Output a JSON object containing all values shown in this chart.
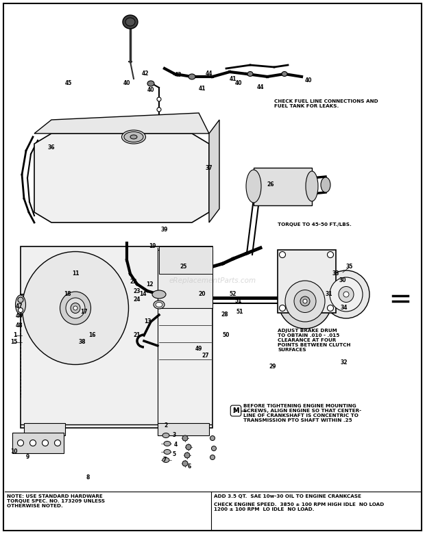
{
  "bg_color": "#ffffff",
  "fig_width": 6.2,
  "fig_height": 7.8,
  "dpi": 100,
  "watermark": "eReplacementParts.com",
  "note_left": "NOTE: USE STANDARD HARDWARE\nTORQUE SPEC. NO. 173209 UNLESS\nOTHERWISE NOTED.",
  "note_right1": "ADD 3.5 QT.  SAE 10w-30 OIL TO ENGINE CRANKCASE",
  "note_right2": "CHECK ENGINE SPEED.  3850 ± 100 RPM HIGH IDLE  NO LOAD\n1200 ± 100 RPM  LO IDLE  NO LOAD.",
  "note_check_fuel": "CHECK FUEL LINE CONNECTIONS AND\nFUEL TANK FOR LEAKS.",
  "note_torque": "TORQUE TO 45-50 FT./LBS.",
  "note_adjust": "ADJUST BRAKE DRUM\nTO OBTAIN .010 - .015\nCLEARANCE AT FOUR\nPOINTS BETWEEN CLUTCH\nSURFACES",
  "note_before": "BEFORE TIGHTENING ENGINE MOUNTING\nSCREWS, ALIGN ENGINE SO THAT CENTER-\nLINE OF CRANKSHAFT IS CONCENTRIC TO\nTRANSMISSION PTO SHAFT WITHIN .25"
}
